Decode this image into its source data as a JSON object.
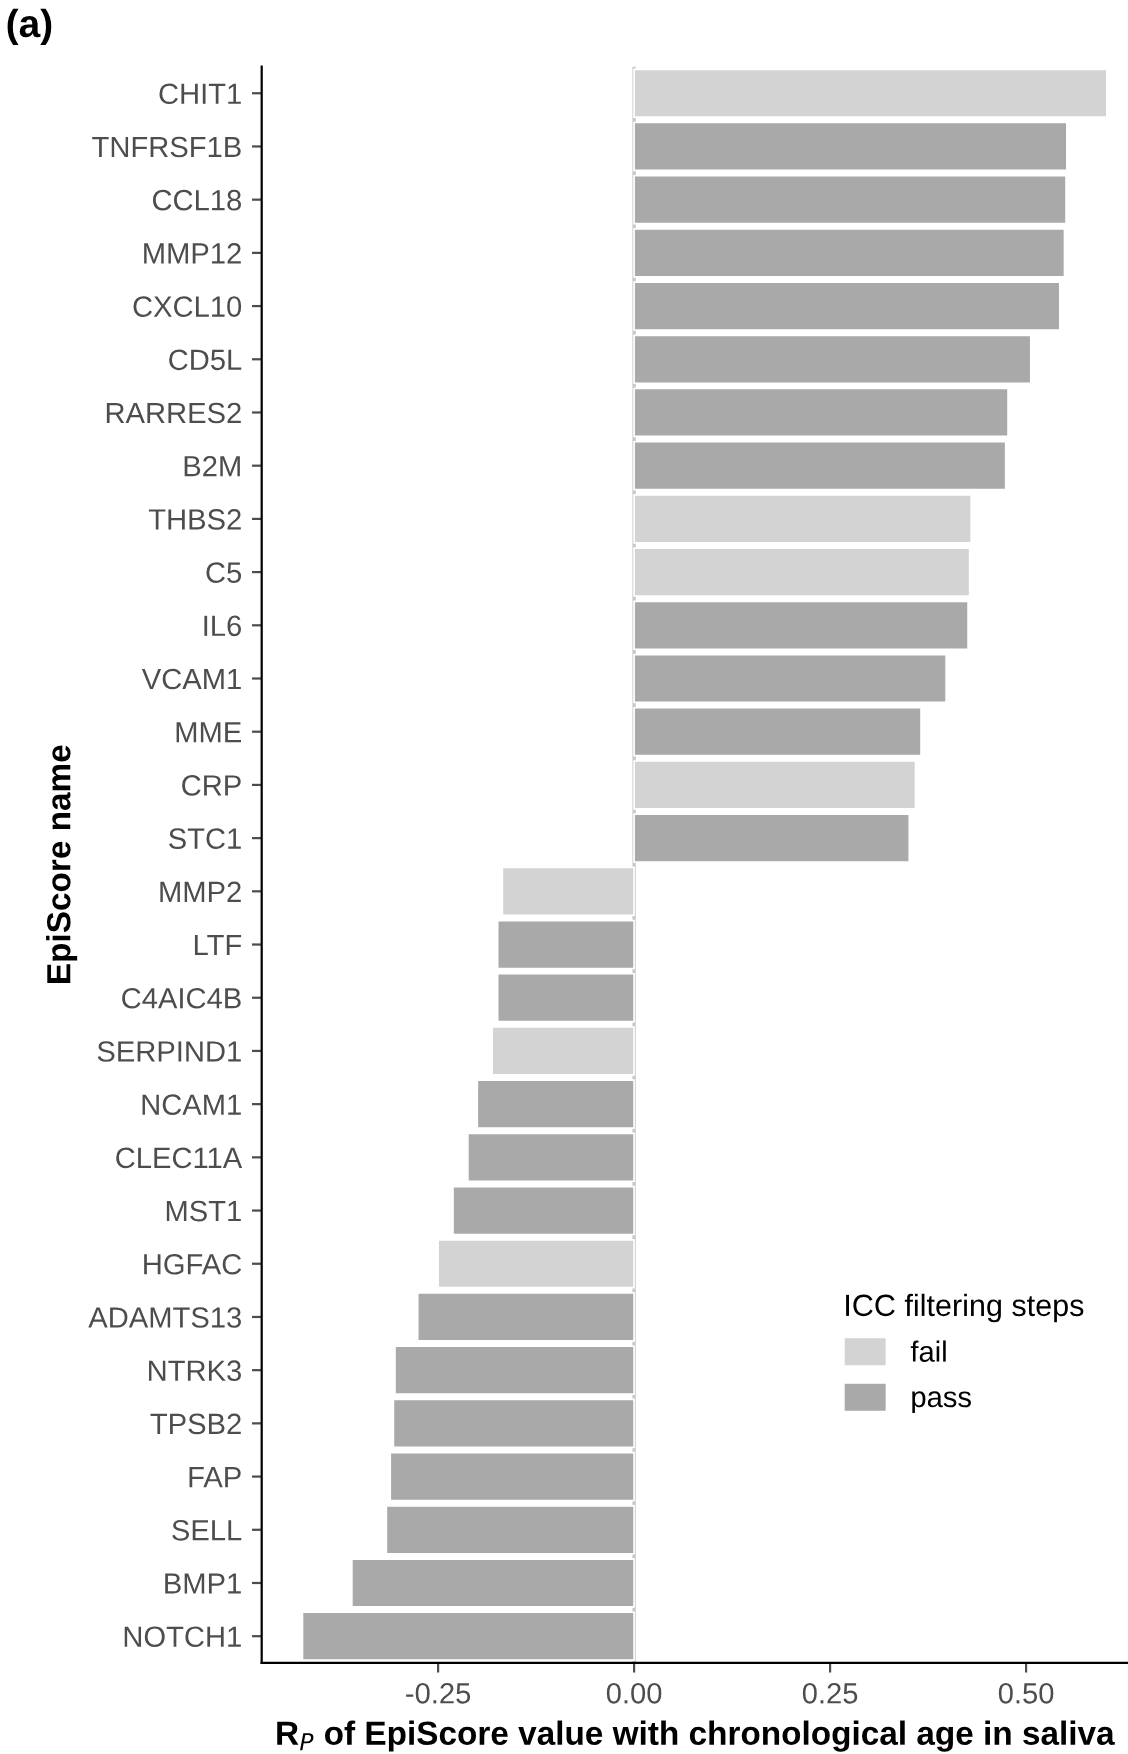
{
  "chart_data": {
    "type": "bar",
    "orientation": "horizontal",
    "title": "(a)",
    "xlabel": "R$_{P}$ of EpiScore value with chronological age in saliva",
    "ylabel": "EpiScore name",
    "legend_title": "ICC filtering steps",
    "categories": [
      "CHIT1",
      "TNFRSF1B",
      "CCL18",
      "MMP12",
      "CXCL10",
      "CD5L",
      "RARRES2",
      "B2M",
      "THBS2",
      "C5",
      "IL6",
      "VCAM1",
      "MME",
      "CRP",
      "STC1",
      "MMP2",
      "LTF",
      "C4AIC4B",
      "SERPIND1",
      "NCAM1",
      "CLEC11A",
      "MST1",
      "HGFAC",
      "ADAMTS13",
      "NTRK3",
      "TPSB2",
      "FAP",
      "SELL",
      "BMP1",
      "NOTCH1"
    ],
    "series": [
      {
        "name": "fail",
        "color": "#d3d3d3",
        "values": [
          0.603,
          null,
          null,
          null,
          null,
          null,
          null,
          null,
          0.43,
          0.428,
          null,
          null,
          null,
          0.359,
          null,
          -0.168,
          null,
          null,
          -0.181,
          null,
          null,
          null,
          -0.25,
          null,
          null,
          null,
          null,
          null,
          null,
          null
        ]
      },
      {
        "name": "pass",
        "color": "#a9a9a9",
        "values": [
          null,
          0.552,
          0.551,
          0.549,
          0.543,
          0.506,
          0.477,
          0.474,
          null,
          null,
          0.426,
          0.398,
          0.366,
          null,
          0.351,
          null,
          -0.174,
          -0.174,
          null,
          -0.2,
          -0.212,
          -0.231,
          null,
          -0.276,
          -0.305,
          -0.307,
          -0.311,
          -0.316,
          -0.36,
          -0.423
        ]
      }
    ],
    "xlim": [
      -0.475,
      0.63
    ],
    "xticks": [
      -0.25,
      {
        "value": 0,
        "label": "0.00"
      },
      0.25,
      {
        "value": 0.5,
        "label": "0.50"
      }
    ],
    "ref_lines": [
      {
        "axis": "x",
        "value": 0,
        "color": "#c8c8c8"
      }
    ],
    "grid": false,
    "legend": "bottom right"
  }
}
